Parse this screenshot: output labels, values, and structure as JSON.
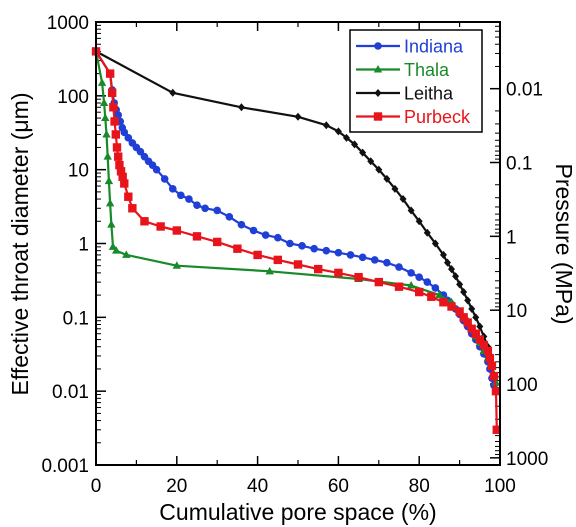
{
  "chart_data": {
    "type": "line",
    "xlabel": "Cumulative pore space (%)",
    "ylabel_left_prefix": "Effective throat diameter (",
    "ylabel_left_unit": "μm",
    "ylabel_left_suffix": ")",
    "ylabel_right": "Pressure (MPa)",
    "xlim": [
      0,
      100
    ],
    "ylim": [
      0.001,
      1000
    ],
    "yscale": "log",
    "grid": false,
    "legend_position": "top-right",
    "x_ticks": [
      {
        "value": 0,
        "label": "0"
      },
      {
        "value": 20,
        "label": "20"
      },
      {
        "value": 40,
        "label": "40"
      },
      {
        "value": 60,
        "label": "60"
      },
      {
        "value": 80,
        "label": "80"
      },
      {
        "value": 100,
        "label": "100"
      }
    ],
    "y_ticks_left": [
      {
        "value": 1000,
        "label": "1000"
      },
      {
        "value": 100,
        "label": "100"
      },
      {
        "value": 10,
        "label": "10"
      },
      {
        "value": 1,
        "label": "1"
      },
      {
        "value": 0.1,
        "label": "0.1"
      },
      {
        "value": 0.01,
        "label": "0.01"
      },
      {
        "value": 0.001,
        "label": "0.001"
      }
    ],
    "y_ticks_right": [
      {
        "value": 0.01,
        "label": "0.01",
        "left_axis_value": 125
      },
      {
        "value": 0.1,
        "label": "0.1",
        "left_axis_value": 12.5
      },
      {
        "value": 1,
        "label": "1",
        "left_axis_value": 1.25
      },
      {
        "value": 10,
        "label": "10",
        "left_axis_value": 0.125
      },
      {
        "value": 100,
        "label": "100",
        "left_axis_value": 0.0125
      },
      {
        "value": 1000,
        "label": "1000",
        "left_axis_value": 0.00125
      }
    ],
    "series": [
      {
        "name": "Indiana",
        "color": "#1f3fd6",
        "marker": "circle",
        "label_color": "#1f3fd6",
        "x": [
          0,
          3.5,
          4,
          4.5,
          5,
          5.5,
          6,
          6.5,
          7,
          8,
          9,
          10,
          11,
          12,
          13,
          14,
          15,
          17,
          19,
          21,
          23,
          25,
          27,
          30,
          33,
          36,
          39,
          42,
          45,
          48,
          51,
          54,
          57,
          60,
          63,
          66,
          69,
          72,
          75,
          78,
          80,
          82,
          84,
          86,
          87,
          88,
          89,
          90,
          91,
          92,
          93,
          94,
          95,
          96,
          97,
          97.5,
          98,
          98.5,
          99
        ],
        "y": [
          400,
          200,
          120,
          80,
          65,
          55,
          45,
          37,
          32,
          27,
          23,
          20,
          17.5,
          15,
          13,
          11.5,
          10,
          7.5,
          5.5,
          4.5,
          4,
          3.3,
          3.0,
          2.8,
          2.3,
          1.8,
          1.5,
          1.3,
          1.2,
          1.0,
          0.93,
          0.85,
          0.8,
          0.75,
          0.7,
          0.65,
          0.6,
          0.55,
          0.48,
          0.4,
          0.35,
          0.3,
          0.25,
          0.2,
          0.17,
          0.15,
          0.13,
          0.11,
          0.09,
          0.075,
          0.06,
          0.05,
          0.04,
          0.032,
          0.025,
          0.02,
          0.015,
          0.012,
          0.01
        ]
      },
      {
        "name": "Thala",
        "color": "#198a2a",
        "marker": "triangle",
        "label_color": "#198a2a",
        "x": [
          0,
          1.5,
          2,
          2.3,
          2.6,
          2.9,
          3.2,
          3.5,
          3.8,
          4.2,
          5,
          7.5,
          20,
          43,
          65,
          78,
          85,
          88,
          90,
          92,
          93,
          94,
          95,
          96,
          97,
          98,
          98.5,
          99
        ],
        "y": [
          400,
          150,
          80,
          50,
          30,
          15,
          7,
          3.5,
          1.8,
          0.9,
          0.8,
          0.7,
          0.5,
          0.42,
          0.33,
          0.27,
          0.2,
          0.16,
          0.12,
          0.09,
          0.07,
          0.055,
          0.045,
          0.035,
          0.028,
          0.022,
          0.017,
          0.013
        ]
      },
      {
        "name": "Leitha",
        "color": "#111111",
        "marker": "diamond",
        "label_color": "#111111",
        "x": [
          0,
          19,
          36,
          50,
          57,
          60,
          62,
          64,
          66,
          68,
          70,
          72,
          74,
          76,
          78,
          80,
          82,
          84,
          86,
          87,
          88,
          89,
          90,
          91,
          92,
          93,
          94,
          95,
          96,
          97,
          97.5,
          98
        ],
        "y": [
          400,
          110,
          70,
          52,
          40,
          33,
          27,
          22,
          17,
          13,
          10,
          7.5,
          5.5,
          4,
          2.8,
          2,
          1.4,
          1,
          0.7,
          0.55,
          0.45,
          0.36,
          0.28,
          0.22,
          0.17,
          0.13,
          0.1,
          0.075,
          0.055,
          0.04,
          0.03,
          0.022
        ]
      },
      {
        "name": "Purbeck",
        "color": "#e8141c",
        "marker": "square",
        "label_color": "#e8141c",
        "x": [
          0,
          3.5,
          4,
          4.3,
          4.6,
          4.9,
          5.2,
          5.5,
          5.8,
          6.2,
          6.6,
          7,
          8,
          9,
          12,
          16,
          20,
          25,
          30,
          35,
          40,
          45,
          50,
          55,
          60,
          65,
          70,
          75,
          80,
          83,
          86,
          88,
          90,
          91,
          92,
          93,
          94,
          95,
          96,
          97,
          97.5,
          98,
          98.5,
          99,
          99.2
        ],
        "y": [
          400,
          200,
          110,
          70,
          45,
          30,
          20,
          15,
          11.5,
          9.5,
          8,
          6.5,
          4.3,
          3,
          2,
          1.7,
          1.5,
          1.25,
          1.05,
          0.85,
          0.7,
          0.6,
          0.52,
          0.45,
          0.4,
          0.35,
          0.3,
          0.26,
          0.22,
          0.19,
          0.16,
          0.14,
          0.12,
          0.1,
          0.085,
          0.07,
          0.06,
          0.05,
          0.042,
          0.035,
          0.028,
          0.022,
          0.016,
          0.01,
          0.003
        ]
      }
    ]
  }
}
